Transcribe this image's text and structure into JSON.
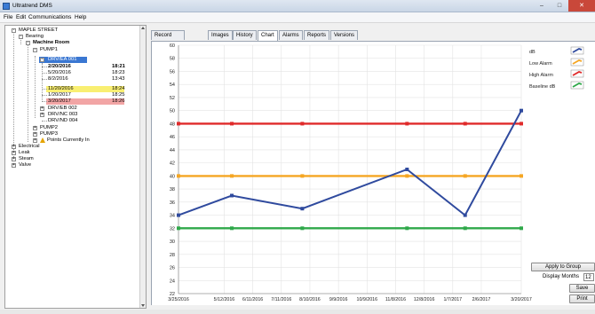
{
  "window": {
    "title": "Ultratrend DMS",
    "menu": [
      "File",
      "Edit",
      "Communications",
      "Help"
    ]
  },
  "tree": {
    "nodes": [
      {
        "label": "MAPLE STREET"
      },
      {
        "label": "Bearing"
      },
      {
        "label": "Machine Room"
      },
      {
        "label": "PUMP1"
      },
      {
        "label": "DRV/EA 001"
      },
      {
        "label": "2/20/2016",
        "time": "18:21"
      },
      {
        "label": "5/20/2016",
        "time": "18:23"
      },
      {
        "label": "8/2/2016",
        "time": "13:43"
      },
      {
        "label": "11/20/2016",
        "time": "18:24"
      },
      {
        "label": "1/20/2017",
        "time": "18:25"
      },
      {
        "label": "3/20/2017",
        "time": "18:26"
      },
      {
        "label": "DRV/EB 002"
      },
      {
        "label": "DRV/NC 003"
      },
      {
        "label": "DRV/ND 004"
      },
      {
        "label": "PUMP2"
      },
      {
        "label": "PUMP3"
      },
      {
        "label": "Points Currently In"
      },
      {
        "label": "Electrical"
      },
      {
        "label": "Leak"
      },
      {
        "label": "Steam"
      },
      {
        "label": "Valve"
      }
    ]
  },
  "tabs": [
    "Record Information",
    "Images",
    "History",
    "Chart",
    "Alarms",
    "Reports",
    "Versions"
  ],
  "active_tab": "Chart",
  "legend": [
    {
      "label": "dB",
      "color": "#2f4a9e"
    },
    {
      "label": "Low Alarm",
      "color": "#f5a623"
    },
    {
      "label": "High Alarm",
      "color": "#e02a2a"
    },
    {
      "label": "Baseline dB",
      "color": "#2fa84a"
    }
  ],
  "controls": {
    "apply_label": "Apply to Group",
    "display_months_label": "Display Months",
    "display_months_value": "12",
    "save_label": "Save",
    "print_label": "Print"
  },
  "chart_data": {
    "type": "line",
    "ylim": [
      22,
      60
    ],
    "yticks": [
      22,
      24,
      26,
      28,
      30,
      32,
      34,
      36,
      38,
      40,
      42,
      44,
      46,
      48,
      50,
      52,
      54,
      56,
      58,
      60
    ],
    "xticks": [
      "3/25/2016",
      "5/12/2016",
      "6/11/2016",
      "7/11/2016",
      "8/10/2016",
      "9/9/2016",
      "10/9/2016",
      "11/8/2016",
      "12/8/2016",
      "1/7/2017",
      "2/6/2017",
      "3/20/2017"
    ],
    "series": [
      {
        "name": "dB",
        "color": "#2f4a9e",
        "x": [
          "3/25/2016",
          "5/20/2016",
          "8/2/2016",
          "11/20/2016",
          "1/20/2017",
          "3/20/2017"
        ],
        "values": [
          34,
          37,
          35,
          41,
          34,
          50
        ]
      },
      {
        "name": "Low Alarm",
        "color": "#f5a623",
        "x": [
          "3/25/2016",
          "5/20/2016",
          "8/2/2016",
          "11/20/2016",
          "1/20/2017",
          "3/20/2017"
        ],
        "values": [
          40,
          40,
          40,
          40,
          40,
          40
        ]
      },
      {
        "name": "High Alarm",
        "color": "#e02a2a",
        "x": [
          "3/25/2016",
          "5/20/2016",
          "8/2/2016",
          "11/20/2016",
          "1/20/2017",
          "3/20/2017"
        ],
        "values": [
          48,
          48,
          48,
          48,
          48,
          48
        ]
      },
      {
        "name": "Baseline dB",
        "color": "#2fa84a",
        "x": [
          "3/25/2016",
          "5/20/2016",
          "8/2/2016",
          "11/20/2016",
          "1/20/2017",
          "3/20/2017"
        ],
        "values": [
          32,
          32,
          32,
          32,
          32,
          32
        ]
      }
    ]
  }
}
